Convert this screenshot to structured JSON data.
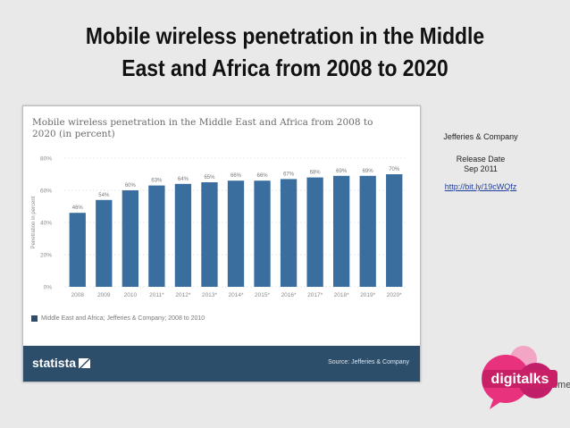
{
  "slide": {
    "title_line1": "Mobile wireless penetration in the Middle",
    "title_line2": "East and Africa from 2008 to 2020"
  },
  "info": {
    "company": "Jefferies & Company",
    "release_label": "Release Date",
    "release_date": "Sep 2011",
    "link": "http://bit.ly/19cWQfz"
  },
  "footer": {
    "brand": "statista",
    "source": "Source: Jefferies & Company"
  },
  "logo": {
    "text": "digitalks",
    "suffix": ".me"
  },
  "colors": {
    "bar": "#3a6e9e",
    "footer": "#2c4e6b",
    "grid": "#d6d6d6"
  },
  "chart_data": {
    "type": "bar",
    "title": "Mobile wireless penetration in the Middle East and Africa from 2008 to 2020 (in percent)",
    "ylabel": "Penetration in percent",
    "xlabel": "",
    "categories": [
      "2008",
      "2009",
      "2010",
      "2011*",
      "2012*",
      "2013*",
      "2014*",
      "2015*",
      "2016*",
      "2017*",
      "2018*",
      "2019*",
      "2020*"
    ],
    "values": [
      46,
      54,
      60,
      63,
      64,
      65,
      66,
      66,
      67,
      68,
      69,
      69,
      70
    ],
    "data_labels": [
      "46%",
      "54%",
      "60%",
      "63%",
      "64%",
      "65%",
      "66%",
      "66%",
      "67%",
      "68%",
      "69%",
      "69%",
      "70%"
    ],
    "yticks": [
      0,
      20,
      40,
      60,
      80
    ],
    "ytick_labels": [
      "0%",
      "20%",
      "40%",
      "60%",
      "80%"
    ],
    "ylim": [
      0,
      80
    ],
    "grid": true,
    "legend": {
      "position": "bottom-left",
      "text": "Middle East and Africa; Jefferies & Company; 2008 to 2010"
    }
  }
}
